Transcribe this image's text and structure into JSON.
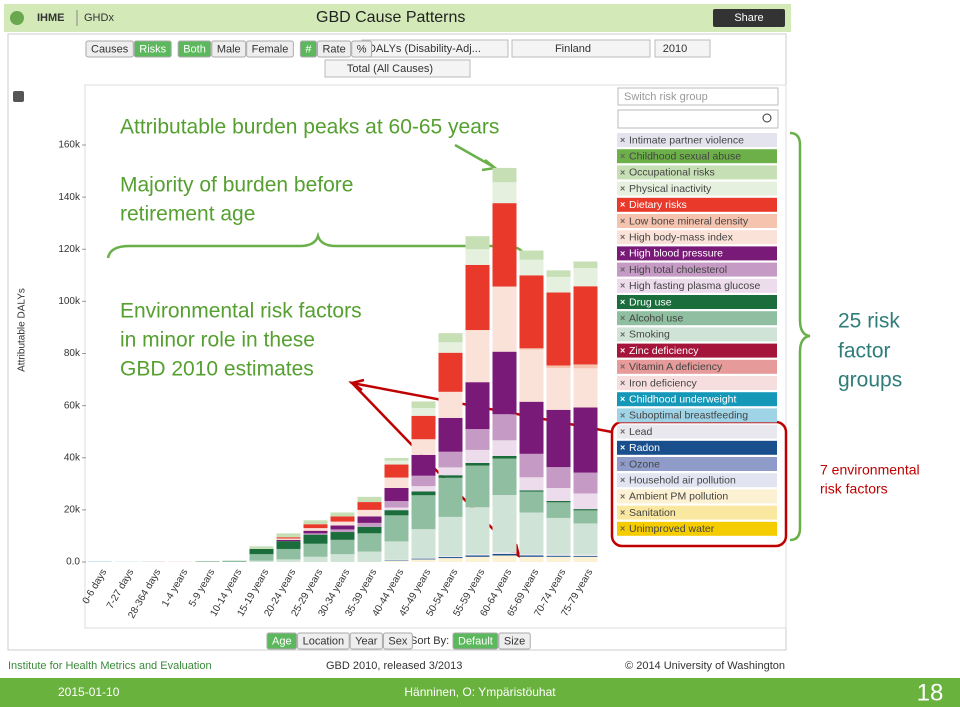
{
  "header": {
    "logo": "IHME",
    "nav": "GHDx",
    "title": "GBD Cause Patterns",
    "share": "Share"
  },
  "controls": {
    "toggles": [
      {
        "options": [
          "Causes",
          "Risks"
        ],
        "selected": 1
      },
      {
        "options": [
          "Both",
          "Male",
          "Female"
        ],
        "selected": 0
      },
      {
        "options": [
          "#",
          "Rate",
          "%"
        ],
        "selected": 0
      }
    ],
    "measure": "DALYs (Disability-Adj...",
    "location": "Finland",
    "year": "2010",
    "cause": "Total (All Causes)"
  },
  "legend_panel": {
    "switch": "Switch risk group"
  },
  "chart_data": {
    "type": "bar",
    "stacked": true,
    "y_label": "Attributable DALYs",
    "categories": [
      "0-6 days",
      "7-27 days",
      "28-364 days",
      "1-4 years",
      "5-9 years",
      "10-14 years",
      "15-19 years",
      "20-24 years",
      "25-29 years",
      "30-34 years",
      "35-39 years",
      "40-44 years",
      "45-49 years",
      "50-54 years",
      "55-59 years",
      "60-64 years",
      "65-69 years",
      "70-74 years",
      "75-79 years"
    ],
    "ylim": [
      0,
      160000
    ],
    "yticks": [
      {
        "value": 0,
        "label": "0.0"
      },
      {
        "value": 20000,
        "label": "20k"
      },
      {
        "value": 40000,
        "label": "40k"
      },
      {
        "value": 60000,
        "label": "60k"
      },
      {
        "value": 80000,
        "label": "80k"
      },
      {
        "value": 100000,
        "label": "100k"
      },
      {
        "value": 120000,
        "label": "120k"
      },
      {
        "value": 140000,
        "label": "140k"
      },
      {
        "value": 160000,
        "label": "160k"
      }
    ],
    "series": [
      {
        "name": "Intimate partner violence",
        "color": "#e4e4ef",
        "values": [
          0,
          0,
          0,
          0,
          0,
          0,
          0,
          0,
          0,
          0,
          0,
          0,
          0,
          0,
          0,
          0,
          0,
          0,
          0
        ]
      },
      {
        "name": "Childhood sexual abuse",
        "color": "#6db04a",
        "values": [
          0,
          0,
          0,
          0,
          0,
          0,
          0,
          0,
          0,
          0,
          0,
          0,
          0,
          0,
          0,
          0,
          0,
          0,
          0
        ]
      },
      {
        "name": "Occupational risks",
        "color": "#c6dfb5",
        "values": [
          0,
          0,
          0,
          0,
          0,
          0,
          1000,
          1500,
          1500,
          1500,
          2000,
          1000,
          2500,
          3500,
          5000,
          5500,
          3500,
          2500,
          2500
        ]
      },
      {
        "name": "Physical inactivity",
        "color": "#e6f0de",
        "values": [
          0,
          0,
          0,
          0,
          0,
          0,
          0,
          0,
          0,
          0,
          0,
          1500,
          3000,
          4000,
          6000,
          8000,
          6000,
          6000,
          7000
        ]
      },
      {
        "name": "Dietary risks",
        "color": "#e8392a",
        "values": [
          0,
          0,
          0,
          0,
          0,
          0,
          0,
          500,
          1500,
          2000,
          3000,
          5000,
          9000,
          15000,
          25000,
          32000,
          28000,
          28000,
          30000
        ]
      },
      {
        "name": "Low bone mineral density",
        "color": "#f6c3ae",
        "values": [
          0,
          0,
          0,
          0,
          0,
          0,
          0,
          0,
          0,
          0,
          0,
          0,
          0,
          0,
          0,
          0,
          500,
          1000,
          1500
        ]
      },
      {
        "name": "High body-mass index",
        "color": "#fbe2d8",
        "values": [
          0,
          0,
          0,
          0,
          0,
          0,
          0,
          500,
          1000,
          1500,
          2500,
          4000,
          6000,
          10000,
          20000,
          25000,
          20000,
          16000,
          15000
        ]
      },
      {
        "name": "High blood pressure",
        "color": "#7a1a78",
        "values": [
          0,
          0,
          0,
          0,
          0,
          0,
          0,
          500,
          1000,
          1500,
          2500,
          5000,
          8000,
          13000,
          18000,
          24000,
          20000,
          22000,
          25000
        ]
      },
      {
        "name": "High total cholesterol",
        "color": "#c59ac4",
        "values": [
          0,
          0,
          0,
          0,
          0,
          0,
          0,
          0,
          500,
          1000,
          1500,
          2500,
          4000,
          6000,
          8000,
          10000,
          9000,
          8000,
          8000
        ]
      },
      {
        "name": "High fasting plasma glucose",
        "color": "#ecdcec",
        "values": [
          0,
          0,
          0,
          0,
          0,
          0,
          0,
          0,
          0,
          0,
          0,
          1000,
          2000,
          3000,
          5000,
          6000,
          5000,
          5000,
          6000
        ]
      },
      {
        "name": "Drug use",
        "color": "#1b6e3c",
        "values": [
          0,
          0,
          0,
          0,
          0,
          0,
          2000,
          3000,
          3500,
          3000,
          2500,
          2000,
          1500,
          1000,
          1000,
          1000,
          500,
          500,
          500
        ]
      },
      {
        "name": "Alcohol use",
        "color": "#8fbfa0",
        "values": [
          0,
          0,
          0,
          0,
          300,
          500,
          2500,
          4000,
          5000,
          5500,
          7000,
          10000,
          13000,
          15000,
          16000,
          14000,
          8000,
          6000,
          5000
        ]
      },
      {
        "name": "Smoking",
        "color": "#cfe3d6",
        "values": [
          0,
          0,
          0,
          0,
          0,
          0,
          500,
          1000,
          2000,
          3000,
          4000,
          7000,
          11000,
          15000,
          18000,
          22000,
          16000,
          14000,
          12000
        ]
      },
      {
        "name": "Zinc deficiency",
        "color": "#a5143a",
        "values": [
          0,
          0,
          0,
          0,
          0,
          0,
          0,
          0,
          0,
          0,
          0,
          0,
          0,
          0,
          0,
          0,
          0,
          0,
          0
        ]
      },
      {
        "name": "Vitamin A deficiency",
        "color": "#e69a9a",
        "values": [
          0,
          0,
          0,
          0,
          0,
          0,
          0,
          0,
          0,
          0,
          0,
          0,
          0,
          0,
          0,
          0,
          0,
          0,
          0
        ]
      },
      {
        "name": "Iron deficiency",
        "color": "#f6dede",
        "values": [
          0,
          0,
          200,
          200,
          0,
          0,
          0,
          0,
          0,
          0,
          0,
          0,
          0,
          0,
          0,
          0,
          0,
          0,
          0
        ]
      },
      {
        "name": "Childhood underweight",
        "color": "#1597b8",
        "values": [
          0,
          0,
          0,
          0,
          0,
          0,
          0,
          0,
          0,
          0,
          0,
          0,
          0,
          0,
          0,
          0,
          0,
          0,
          0
        ]
      },
      {
        "name": "Suboptimal breastfeeding",
        "color": "#9fd3e6",
        "values": [
          200,
          100,
          100,
          0,
          0,
          0,
          0,
          0,
          0,
          0,
          0,
          0,
          0,
          0,
          0,
          0,
          0,
          0,
          0
        ]
      },
      {
        "name": "Lead",
        "color": "#e8e8ee",
        "values": [
          0,
          0,
          0,
          0,
          0,
          0,
          0,
          0,
          0,
          0,
          0,
          200,
          300,
          400,
          500,
          600,
          500,
          500,
          500
        ]
      },
      {
        "name": "Radon",
        "color": "#1a4f8e",
        "values": [
          0,
          0,
          0,
          0,
          0,
          0,
          0,
          0,
          0,
          0,
          0,
          200,
          300,
          400,
          500,
          600,
          500,
          400,
          300
        ]
      },
      {
        "name": "Ozone",
        "color": "#8f9cc9",
        "values": [
          0,
          0,
          0,
          0,
          0,
          0,
          0,
          0,
          0,
          0,
          0,
          0,
          0,
          0,
          0,
          0,
          0,
          0,
          0
        ]
      },
      {
        "name": "Household air pollution",
        "color": "#e2e4f2",
        "values": [
          0,
          0,
          0,
          0,
          0,
          0,
          0,
          0,
          0,
          0,
          0,
          0,
          0,
          0,
          0,
          0,
          0,
          0,
          0
        ]
      },
      {
        "name": "Ambient PM pollution",
        "color": "#fdf1d3",
        "values": [
          0,
          0,
          0,
          0,
          0,
          0,
          0,
          0,
          0,
          0,
          0,
          500,
          1000,
          1500,
          2000,
          2500,
          2000,
          2000,
          2000
        ]
      },
      {
        "name": "Sanitation",
        "color": "#fbe8a0",
        "values": [
          0,
          0,
          0,
          0,
          0,
          0,
          0,
          0,
          0,
          0,
          0,
          0,
          0,
          0,
          0,
          0,
          0,
          0,
          0
        ]
      },
      {
        "name": "Unimproved water",
        "color": "#f5cc00",
        "values": [
          0,
          0,
          0,
          0,
          0,
          0,
          0,
          0,
          0,
          0,
          0,
          0,
          0,
          0,
          0,
          0,
          0,
          0,
          0
        ]
      }
    ]
  },
  "annotations": {
    "peak": "Attributable burden peaks at 60-65 years",
    "majority": [
      "Majority of burden before",
      "retirement age"
    ],
    "environment": [
      "Environmental risk factors",
      "in minor role in these",
      "GBD 2010 estimates"
    ],
    "groups": [
      "25 risk",
      "factor",
      "groups"
    ],
    "env_factors": [
      "7 environmental",
      "risk factors"
    ]
  },
  "bottom_controls": {
    "tabs": {
      "options": [
        "Age",
        "Location",
        "Year",
        "Sex"
      ],
      "selected": 0
    },
    "sort": {
      "label": "Sort By:",
      "options": [
        "Default",
        "Size"
      ],
      "selected": 0
    }
  },
  "footer": {
    "left": "Institute for Health Metrics and Evaluation",
    "center": "GBD 2010, released 3/2013",
    "right": "© 2014 University of Washington"
  },
  "slide": {
    "date": "2015-01-10",
    "author": "Hänninen, O: Ympäristöuhat",
    "page": "18"
  }
}
